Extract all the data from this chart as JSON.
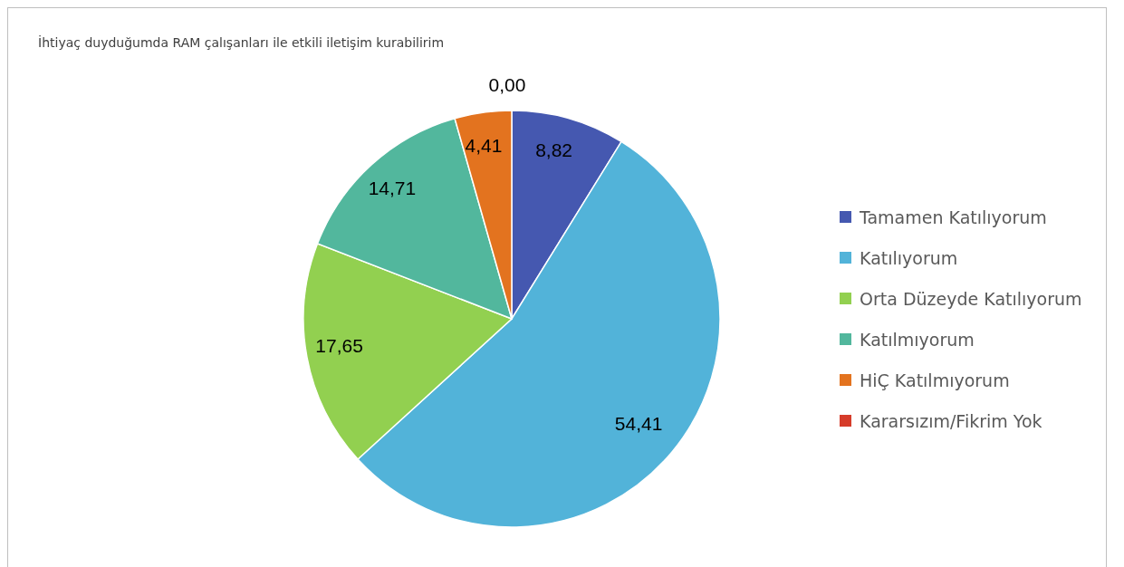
{
  "chart_data": {
    "type": "pie",
    "title": "İhtiyaç duyduğumda RAM çalışanları ile etkili iletişim kurabilirim",
    "categories": [
      "Tamamen Katılıyorum",
      "Katılıyorum",
      "Orta Düzeyde Katılıyorum",
      "Katılmıyorum",
      "HiÇ Katılmıyorum",
      "Kararsızım/Fikrim Yok"
    ],
    "values": [
      8.82,
      54.41,
      17.65,
      14.71,
      4.41,
      0.0
    ],
    "value_labels": [
      "8,82",
      "54,41",
      "17,65",
      "14,71",
      "4,41",
      "0,00"
    ],
    "colors": [
      "#4558b0",
      "#52b3d9",
      "#92d050",
      "#52b79d",
      "#e3731f",
      "#d63c2a"
    ],
    "legend": "right"
  }
}
